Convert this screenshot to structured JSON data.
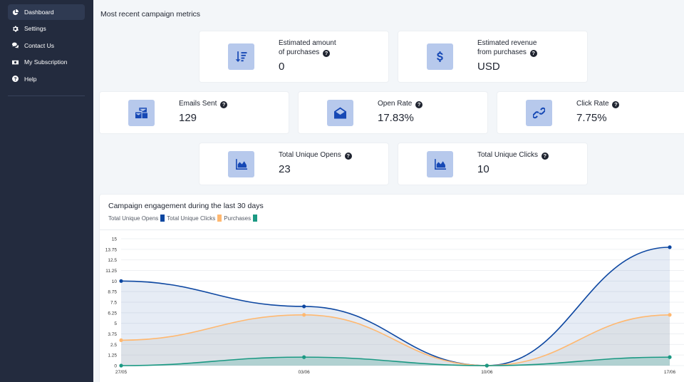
{
  "sidebar": {
    "items": [
      {
        "label": "Dashboard",
        "icon": "pie-chart-icon",
        "active": true
      },
      {
        "label": "Settings",
        "icon": "gear-icon",
        "active": false
      },
      {
        "label": "Contact Us",
        "icon": "chat-bubbles-icon",
        "active": false
      },
      {
        "label": "My Subscription",
        "icon": "money-bill-icon",
        "active": false
      },
      {
        "label": "Help",
        "icon": "question-circle-icon",
        "active": false
      }
    ]
  },
  "page_title": "Most recent campaign metrics",
  "metrics": {
    "est_purchases": {
      "label_line1": "Estimated amount",
      "label_line2": "of purchases",
      "value": "0",
      "icon": "sort-amount-icon"
    },
    "est_revenue": {
      "label_line1": "Estimated revenue",
      "label_line2": "from purchases",
      "value": "USD",
      "icon": "dollar-icon"
    },
    "emails_sent": {
      "label": "Emails Sent",
      "value": "129",
      "icon": "mail-bulk-icon"
    },
    "open_rate": {
      "label": "Open Rate",
      "value": "17.83%",
      "icon": "envelope-open-icon"
    },
    "click_rate": {
      "label": "Click Rate",
      "value": "7.75%",
      "icon": "link-icon"
    },
    "unique_opens": {
      "label": "Total Unique Opens",
      "value": "23",
      "icon": "area-chart-icon"
    },
    "unique_clicks": {
      "label": "Total Unique Clicks",
      "value": "10",
      "icon": "area-chart-icon"
    }
  },
  "help_glyph": "?",
  "colors": {
    "sidebar_bg": "#232b3e",
    "tile_bg": "#b7c9ec",
    "tile_icon": "#1648b5",
    "opens": "#0d47a1",
    "clicks": "#ffb870",
    "purchases": "#1b9983"
  },
  "chart_data": {
    "type": "area",
    "title": "Campaign engagement during the last 30 days",
    "x": [
      "27/05",
      "03/06",
      "10/06",
      "17/06"
    ],
    "yticks": [
      "0",
      "1.25",
      "2.5",
      "3.75",
      "5",
      "6.25",
      "7.5",
      "8.75",
      "10",
      "11.25",
      "12.5",
      "13.75",
      "15"
    ],
    "ylim": [
      0,
      15
    ],
    "series": [
      {
        "name": "Total Unique Opens",
        "color": "#0d47a1",
        "values": [
          10,
          7,
          0,
          14
        ]
      },
      {
        "name": "Total Unique Clicks",
        "color": "#ffb870",
        "values": [
          3,
          6,
          0,
          6
        ]
      },
      {
        "name": "Purchases",
        "color": "#1b9983",
        "values": [
          0,
          1,
          0,
          1
        ]
      }
    ],
    "grid": true,
    "legend": "top-left"
  }
}
